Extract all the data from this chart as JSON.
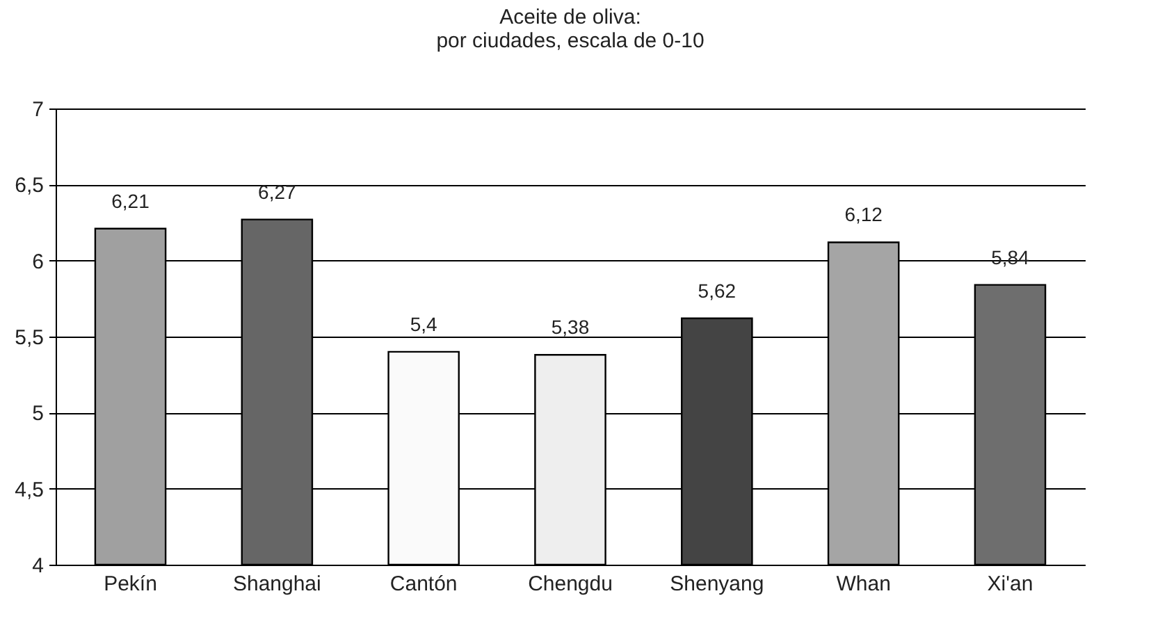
{
  "chart_data": {
    "type": "bar",
    "title": "Aceite de oliva:",
    "subtitle": "por ciudades, escala de 0-10",
    "categories": [
      "Pekín",
      "Shanghai",
      "Cantón",
      "Chengdu",
      "Shenyang",
      "Whan",
      "Xi'an"
    ],
    "values": [
      6.21,
      6.27,
      5.4,
      5.38,
      5.62,
      6.12,
      5.84
    ],
    "value_labels": [
      "6,21",
      "6,27",
      "5,4",
      "5,38",
      "5,62",
      "6,12",
      "5,84"
    ],
    "colors": [
      "#a0a0a0",
      "#666666",
      "#fafafa",
      "#eeeeee",
      "#444444",
      "#a5a5a5",
      "#6e6e6e"
    ],
    "ylim": [
      4,
      7
    ],
    "yticks": [
      4,
      {
        "value": 4.5,
        "label": "4,5"
      },
      5,
      {
        "value": 5.5,
        "label": "5,5"
      },
      6,
      {
        "value": 6.5,
        "label": "6,5"
      },
      7
    ],
    "grid": "y"
  }
}
